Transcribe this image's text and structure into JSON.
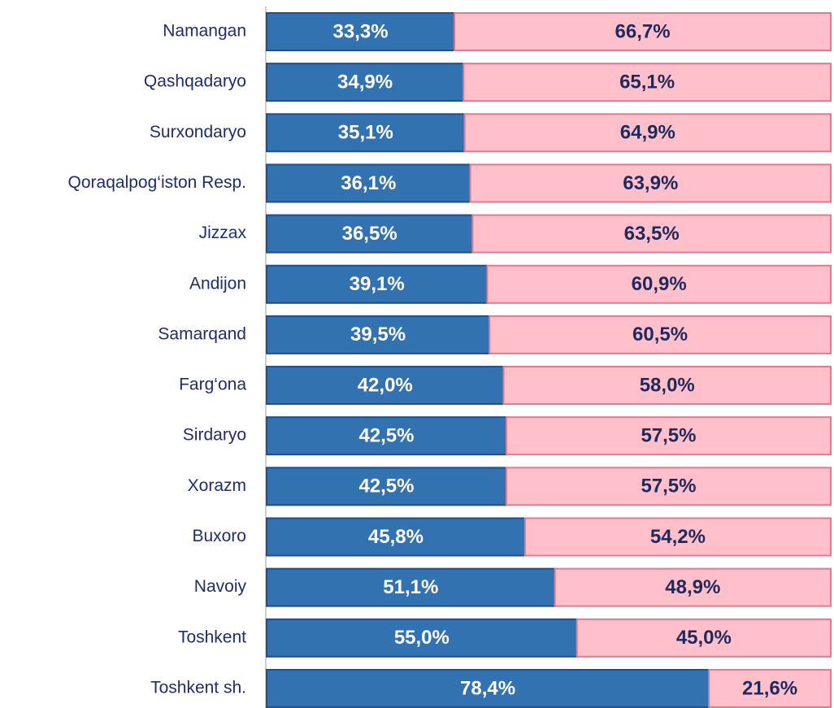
{
  "chart_data": {
    "type": "bar",
    "orientation": "horizontal",
    "stacked": true,
    "categories": [
      "Namangan",
      "Qashqadaryo",
      "Surxondaryo",
      "Qoraqalpog‘iston Resp.",
      "Jizzax",
      "Andijon",
      "Samarqand",
      "Farg‘ona",
      "Sirdaryo",
      "Xorazm",
      "Buxoro",
      "Navoiy",
      "Toshkent",
      "Toshkent sh."
    ],
    "series": [
      {
        "color": "#3372b0",
        "label_color": "#ffffff",
        "values": [
          33.3,
          34.9,
          35.1,
          36.1,
          36.5,
          39.1,
          39.5,
          42.0,
          42.5,
          42.5,
          45.8,
          51.1,
          55.0,
          78.4
        ],
        "value_labels": [
          "33,3%",
          "34,9%",
          "35,1%",
          "36,1%",
          "36,5%",
          "39,1%",
          "39,5%",
          "42,0%",
          "42,5%",
          "42,5%",
          "45,8%",
          "51,1%",
          "55,0%",
          "78,4%"
        ]
      },
      {
        "color": "#ffc0cb",
        "label_color": "#1f2a5c",
        "values": [
          66.7,
          65.1,
          64.9,
          63.9,
          63.5,
          60.9,
          60.5,
          58.0,
          57.5,
          57.5,
          54.2,
          48.9,
          45.0,
          21.6
        ],
        "value_labels": [
          "66,7%",
          "65,1%",
          "64,9%",
          "63,9%",
          "63,5%",
          "60,9%",
          "60,5%",
          "58,0%",
          "57,5%",
          "57,5%",
          "54,2%",
          "48,9%",
          "45,0%",
          "21,6%"
        ]
      }
    ],
    "xlim": [
      0,
      100
    ]
  }
}
